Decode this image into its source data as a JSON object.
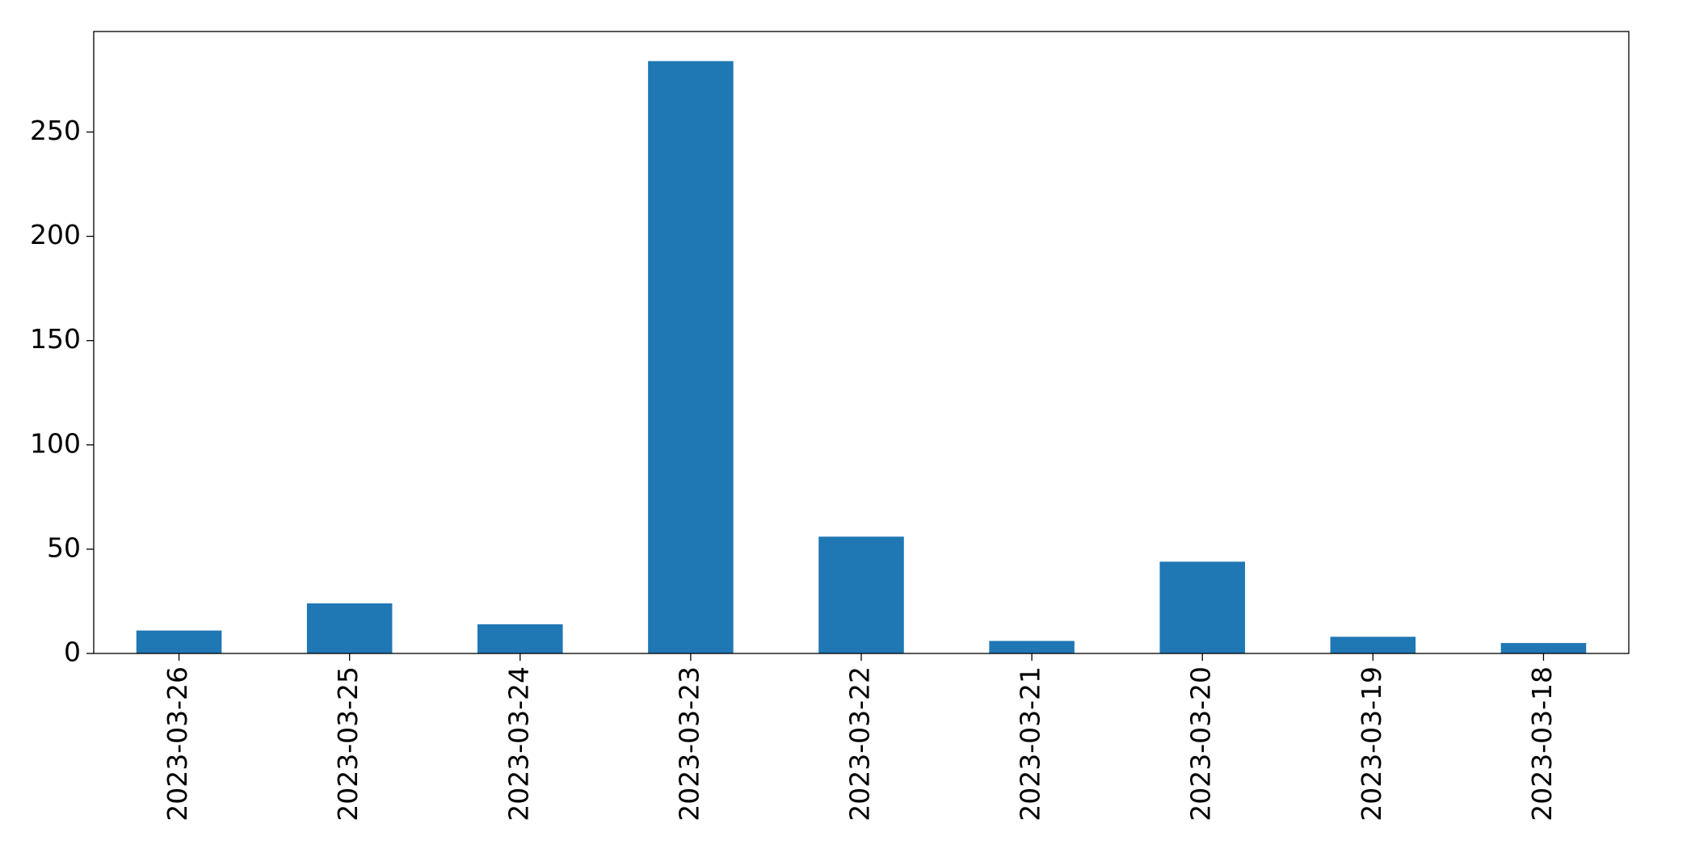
{
  "chart_data": {
    "type": "bar",
    "categories": [
      "2023-03-26",
      "2023-03-25",
      "2023-03-24",
      "2023-03-23",
      "2023-03-22",
      "2023-03-21",
      "2023-03-20",
      "2023-03-19",
      "2023-03-18"
    ],
    "values": [
      11,
      24,
      14,
      284,
      56,
      6,
      44,
      8,
      5
    ],
    "color": "#1f77b4",
    "ylim": [
      0,
      298.2
    ],
    "yticks": [
      0,
      50,
      100,
      150,
      200,
      250
    ],
    "grid": false
  }
}
